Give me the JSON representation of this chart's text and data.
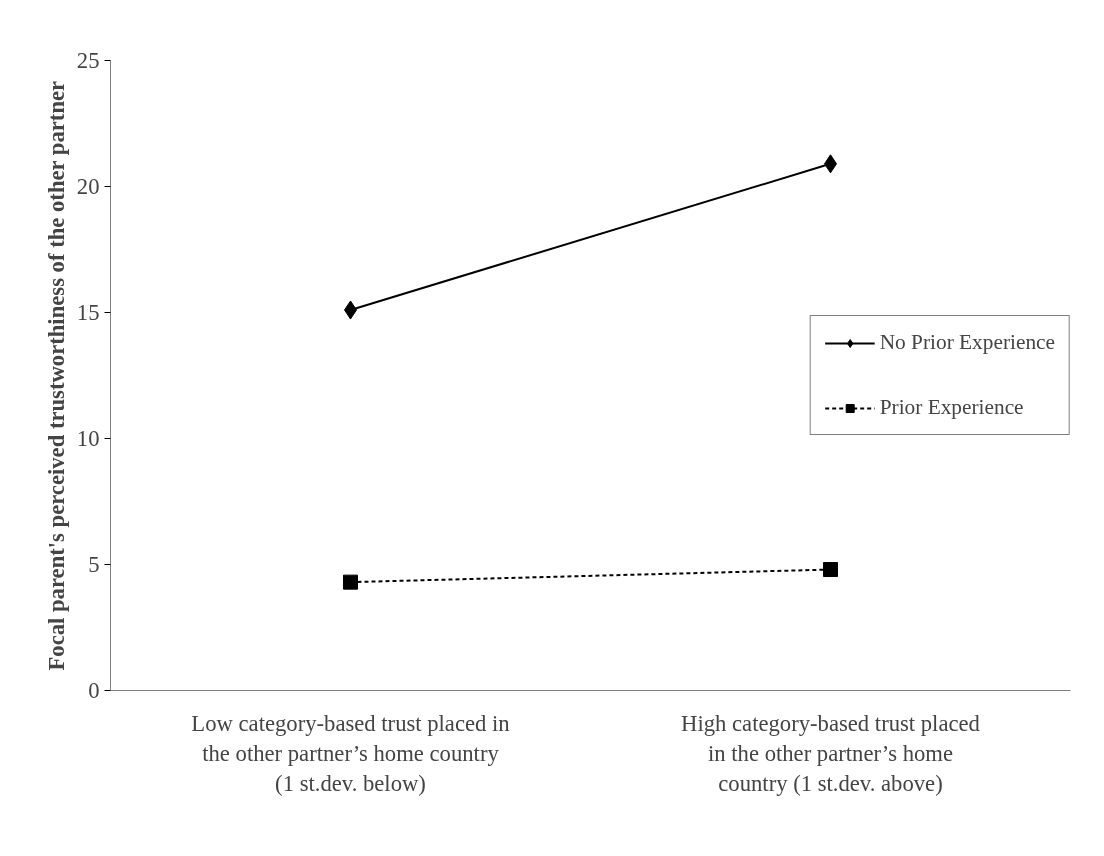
{
  "chart_data": {
    "type": "line",
    "ylabel": "Focal parent's perceived trustworthiness of the other partner",
    "categories": [
      "Low category-based trust placed in the other partner’s home country (1 st.dev. below)",
      "High category-based trust placed in the other partner’s home country (1 st.dev. above)"
    ],
    "series": [
      {
        "name": "No Prior Experience",
        "color": "#000000",
        "values": [
          15.1,
          20.9
        ],
        "marker": "diamond",
        "line_style": "solid"
      },
      {
        "name": "Prior Experience",
        "color": "#000000",
        "values": [
          4.3,
          4.8
        ],
        "marker": "square",
        "line_style": "dashed"
      }
    ],
    "ylim": [
      0,
      25
    ],
    "yticks": [
      0,
      5,
      10,
      15,
      20,
      25
    ],
    "grid": false,
    "legend": "right"
  }
}
